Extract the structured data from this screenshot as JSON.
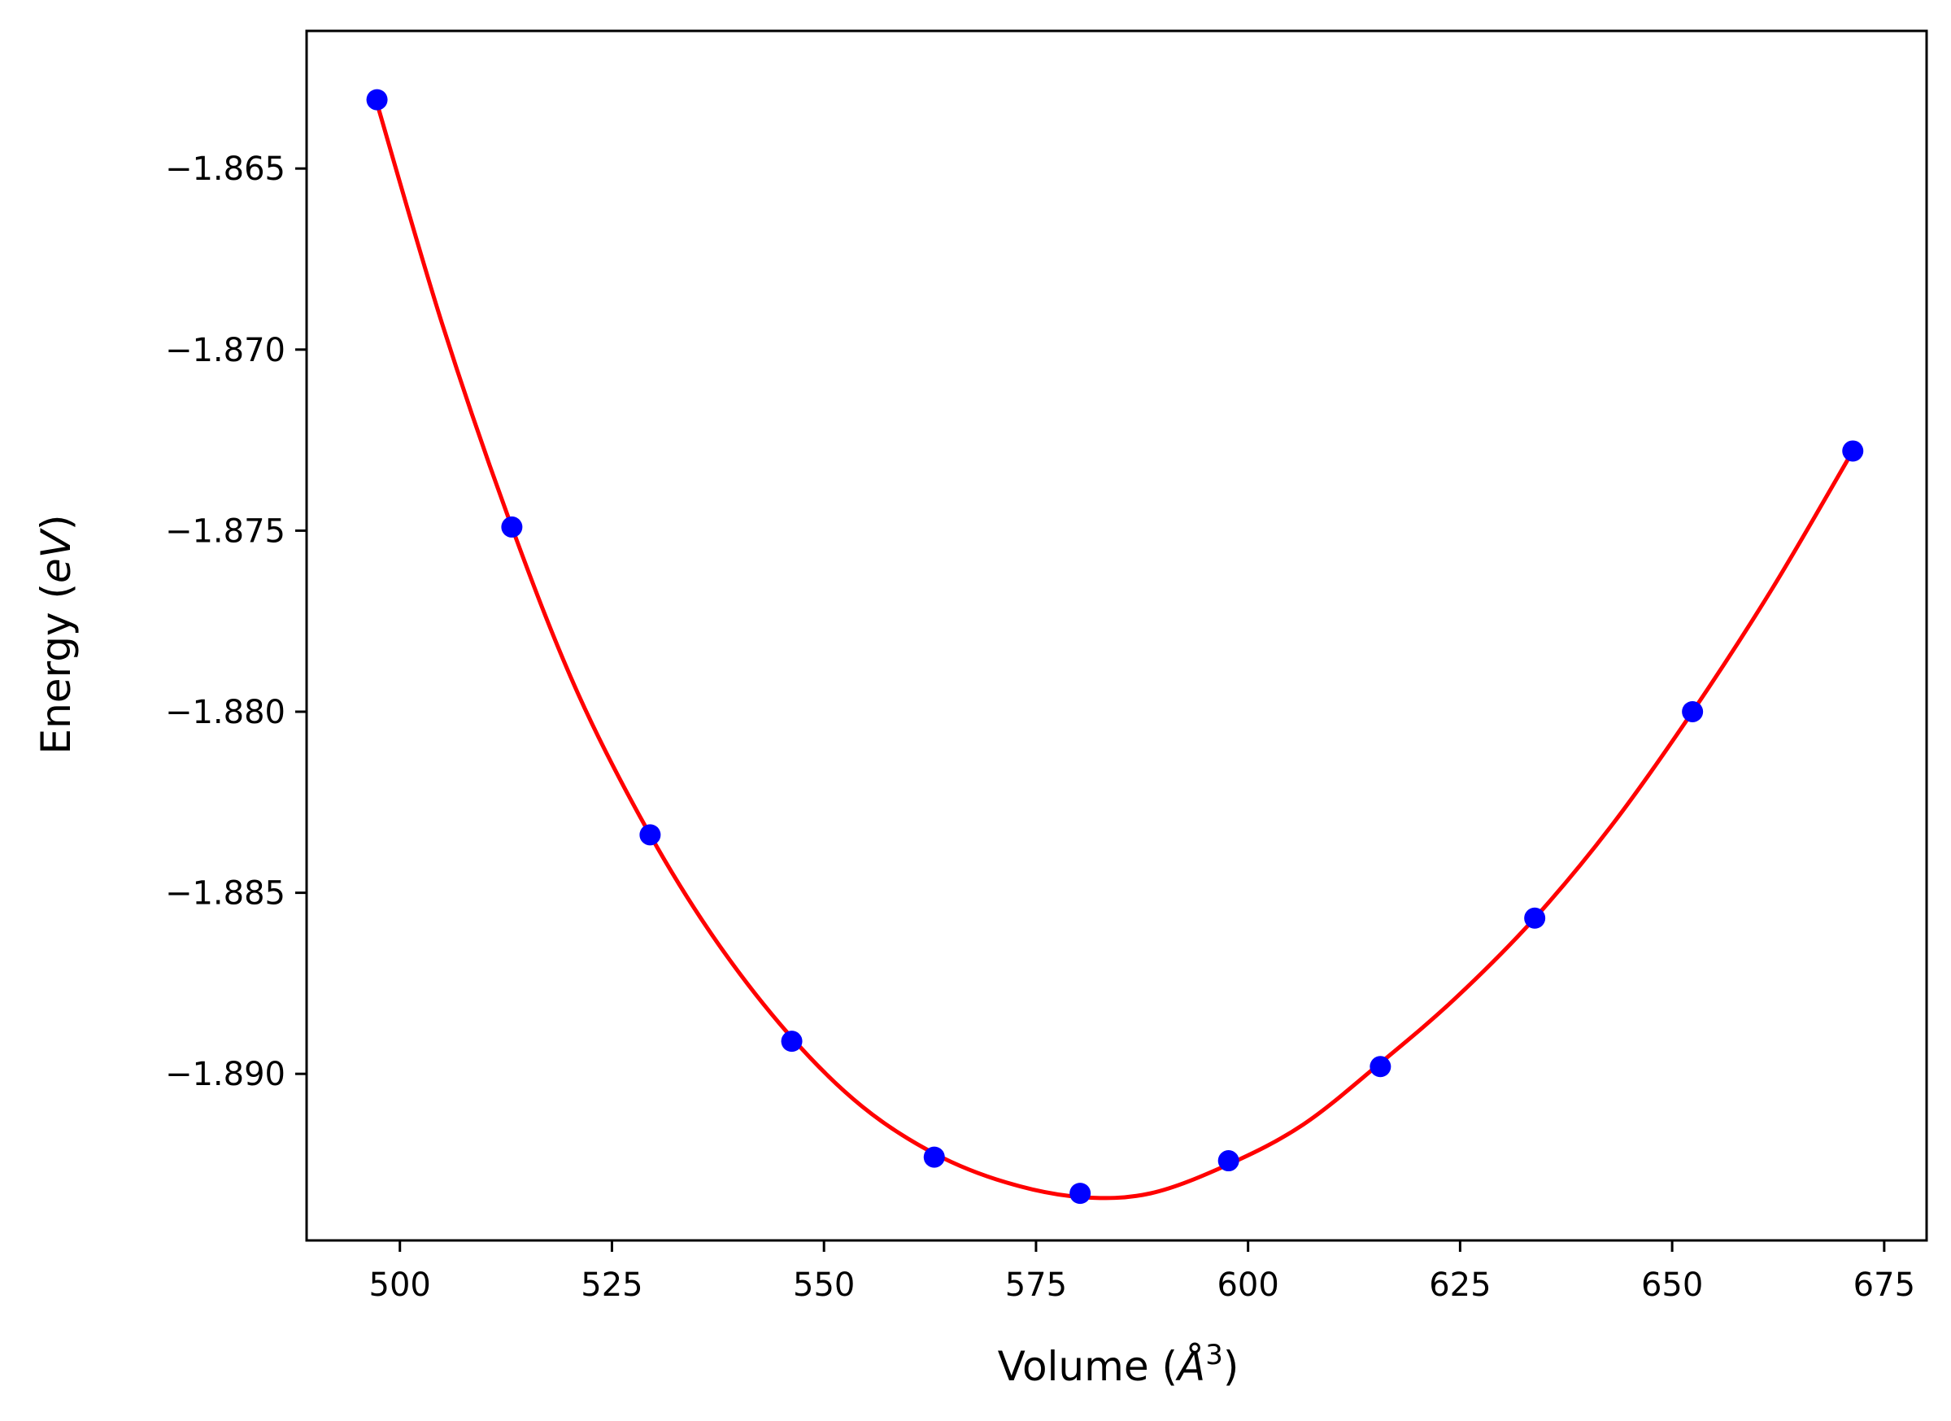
{
  "chart_data": {
    "type": "scatter",
    "xlabel": "Volume (Å3)",
    "xlabel_parts": {
      "prefix": "Volume (",
      "symbol": "Å",
      "exponent": "3",
      "suffix": ")"
    },
    "ylabel": "Energy (eV)",
    "ylabel_parts": {
      "prefix": "Energy (",
      "unit": "eV",
      "suffix": ")"
    },
    "xlim": [
      489,
      680
    ],
    "ylim": [
      -1.8946,
      -1.8612
    ],
    "x_ticks": [
      500,
      525,
      550,
      575,
      600,
      625,
      650,
      675
    ],
    "x_tick_labels": [
      "500",
      "525",
      "550",
      "575",
      "600",
      "625",
      "650",
      "675"
    ],
    "y_ticks": [
      -1.865,
      -1.87,
      -1.875,
      -1.88,
      -1.885,
      -1.89
    ],
    "y_tick_labels": [
      "−1.865",
      "−1.870",
      "−1.875",
      "−1.880",
      "−1.885",
      "−1.890"
    ],
    "grid": false,
    "series": [
      {
        "kind": "points",
        "color": "#0000ff",
        "x": [
          497.3,
          513.2,
          529.5,
          546.2,
          563.0,
          580.2,
          597.7,
          615.6,
          633.8,
          652.4,
          671.3
        ],
        "y": [
          -1.8631,
          -1.8749,
          -1.8834,
          -1.8891,
          -1.8923,
          -1.8933,
          -1.8924,
          -1.8898,
          -1.8857,
          -1.88,
          -1.8728
        ]
      },
      {
        "kind": "fit-curve",
        "color": "#ff0000",
        "x": [
          497.3,
          505,
          513.2,
          521,
          529.5,
          537.5,
          546.2,
          554.5,
          563.0,
          571.5,
          580.2,
          588.5,
          597.7,
          606.5,
          615.6,
          624.5,
          633.8,
          643,
          652.4,
          661.8,
          671.3
        ],
        "y": [
          -1.8632,
          -1.8693,
          -1.8749,
          -1.8795,
          -1.8834,
          -1.8864,
          -1.889,
          -1.8909,
          -1.8922,
          -1.893,
          -1.8934,
          -1.8933,
          -1.8925,
          -1.8914,
          -1.8897,
          -1.8879,
          -1.8857,
          -1.8831,
          -1.88,
          -1.8766,
          -1.8728
        ]
      }
    ]
  }
}
